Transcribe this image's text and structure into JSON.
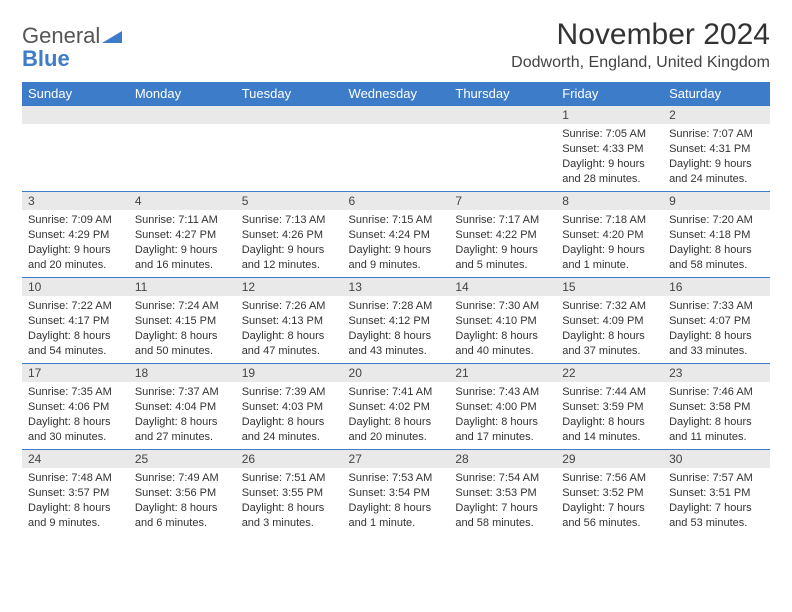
{
  "logo": {
    "word1": "General",
    "word2": "Blue",
    "icon_color": "#3d7cc9",
    "text_gray": "#555555"
  },
  "header": {
    "title": "November 2024",
    "location": "Dodworth, England, United Kingdom"
  },
  "weekdays": [
    "Sunday",
    "Monday",
    "Tuesday",
    "Wednesday",
    "Thursday",
    "Friday",
    "Saturday"
  ],
  "colors": {
    "header_bar": "#3d7cc9",
    "daynum_bg": "#e9e9e9",
    "border": "#3d7cc9",
    "text": "#333333"
  },
  "layout": {
    "first_weekday_index": 5,
    "days_in_month": 30
  },
  "days": {
    "1": {
      "sunrise": "7:05 AM",
      "sunset": "4:33 PM",
      "daylight": "9 hours and 28 minutes."
    },
    "2": {
      "sunrise": "7:07 AM",
      "sunset": "4:31 PM",
      "daylight": "9 hours and 24 minutes."
    },
    "3": {
      "sunrise": "7:09 AM",
      "sunset": "4:29 PM",
      "daylight": "9 hours and 20 minutes."
    },
    "4": {
      "sunrise": "7:11 AM",
      "sunset": "4:27 PM",
      "daylight": "9 hours and 16 minutes."
    },
    "5": {
      "sunrise": "7:13 AM",
      "sunset": "4:26 PM",
      "daylight": "9 hours and 12 minutes."
    },
    "6": {
      "sunrise": "7:15 AM",
      "sunset": "4:24 PM",
      "daylight": "9 hours and 9 minutes."
    },
    "7": {
      "sunrise": "7:17 AM",
      "sunset": "4:22 PM",
      "daylight": "9 hours and 5 minutes."
    },
    "8": {
      "sunrise": "7:18 AM",
      "sunset": "4:20 PM",
      "daylight": "9 hours and 1 minute."
    },
    "9": {
      "sunrise": "7:20 AM",
      "sunset": "4:18 PM",
      "daylight": "8 hours and 58 minutes."
    },
    "10": {
      "sunrise": "7:22 AM",
      "sunset": "4:17 PM",
      "daylight": "8 hours and 54 minutes."
    },
    "11": {
      "sunrise": "7:24 AM",
      "sunset": "4:15 PM",
      "daylight": "8 hours and 50 minutes."
    },
    "12": {
      "sunrise": "7:26 AM",
      "sunset": "4:13 PM",
      "daylight": "8 hours and 47 minutes."
    },
    "13": {
      "sunrise": "7:28 AM",
      "sunset": "4:12 PM",
      "daylight": "8 hours and 43 minutes."
    },
    "14": {
      "sunrise": "7:30 AM",
      "sunset": "4:10 PM",
      "daylight": "8 hours and 40 minutes."
    },
    "15": {
      "sunrise": "7:32 AM",
      "sunset": "4:09 PM",
      "daylight": "8 hours and 37 minutes."
    },
    "16": {
      "sunrise": "7:33 AM",
      "sunset": "4:07 PM",
      "daylight": "8 hours and 33 minutes."
    },
    "17": {
      "sunrise": "7:35 AM",
      "sunset": "4:06 PM",
      "daylight": "8 hours and 30 minutes."
    },
    "18": {
      "sunrise": "7:37 AM",
      "sunset": "4:04 PM",
      "daylight": "8 hours and 27 minutes."
    },
    "19": {
      "sunrise": "7:39 AM",
      "sunset": "4:03 PM",
      "daylight": "8 hours and 24 minutes."
    },
    "20": {
      "sunrise": "7:41 AM",
      "sunset": "4:02 PM",
      "daylight": "8 hours and 20 minutes."
    },
    "21": {
      "sunrise": "7:43 AM",
      "sunset": "4:00 PM",
      "daylight": "8 hours and 17 minutes."
    },
    "22": {
      "sunrise": "7:44 AM",
      "sunset": "3:59 PM",
      "daylight": "8 hours and 14 minutes."
    },
    "23": {
      "sunrise": "7:46 AM",
      "sunset": "3:58 PM",
      "daylight": "8 hours and 11 minutes."
    },
    "24": {
      "sunrise": "7:48 AM",
      "sunset": "3:57 PM",
      "daylight": "8 hours and 9 minutes."
    },
    "25": {
      "sunrise": "7:49 AM",
      "sunset": "3:56 PM",
      "daylight": "8 hours and 6 minutes."
    },
    "26": {
      "sunrise": "7:51 AM",
      "sunset": "3:55 PM",
      "daylight": "8 hours and 3 minutes."
    },
    "27": {
      "sunrise": "7:53 AM",
      "sunset": "3:54 PM",
      "daylight": "8 hours and 1 minute."
    },
    "28": {
      "sunrise": "7:54 AM",
      "sunset": "3:53 PM",
      "daylight": "7 hours and 58 minutes."
    },
    "29": {
      "sunrise": "7:56 AM",
      "sunset": "3:52 PM",
      "daylight": "7 hours and 56 minutes."
    },
    "30": {
      "sunrise": "7:57 AM",
      "sunset": "3:51 PM",
      "daylight": "7 hours and 53 minutes."
    }
  },
  "label": {
    "sunrise": "Sunrise: ",
    "sunset": "Sunset: ",
    "daylight": "Daylight: "
  }
}
